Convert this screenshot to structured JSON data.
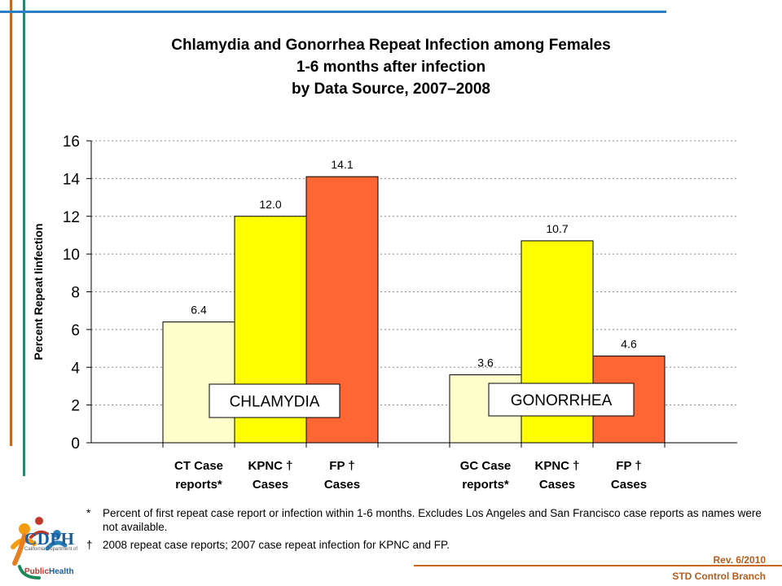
{
  "colors": {
    "accent_blue": "#2a7fc6",
    "accent_orange": "#c8681e",
    "accent_green": "#2a8a6e",
    "bar_case_reports": "#ffffcc",
    "bar_kpnc": "#ffff00",
    "bar_fp": "#ff6633"
  },
  "chart_data": {
    "type": "bar",
    "title_lines": [
      "Chlamydia and Gonorrhea Repeat Infection among Females",
      "1-6 months after infection",
      "by Data Source, 2007–2008"
    ],
    "ylabel": "Percent Repeat Iinfection",
    "xlabel": "",
    "ylim": [
      0,
      16
    ],
    "yticks": [
      0,
      2,
      4,
      6,
      8,
      10,
      12,
      14,
      16
    ],
    "grid": true,
    "groups": [
      {
        "name": "CHLAMYDIA",
        "bars": [
          {
            "label_lines": [
              "CT Case",
              "reports*"
            ],
            "value": 6.4,
            "value_label": "6.4",
            "color_key": "bar_case_reports"
          },
          {
            "label_lines": [
              "KPNC †",
              "Cases"
            ],
            "value": 12.0,
            "value_label": "12.0",
            "color_key": "bar_kpnc"
          },
          {
            "label_lines": [
              "FP †",
              "Cases"
            ],
            "value": 14.1,
            "value_label": "14.1",
            "color_key": "bar_fp"
          }
        ]
      },
      {
        "name": "GONORRHEA",
        "bars": [
          {
            "label_lines": [
              "GC Case",
              "reports*"
            ],
            "value": 3.6,
            "value_label": "3.6",
            "color_key": "bar_case_reports"
          },
          {
            "label_lines": [
              "KPNC †",
              "Cases"
            ],
            "value": 10.7,
            "value_label": "10.7",
            "color_key": "bar_kpnc"
          },
          {
            "label_lines": [
              "FP †",
              "Cases"
            ],
            "value": 4.6,
            "value_label": "4.6",
            "color_key": "bar_fp"
          }
        ]
      }
    ]
  },
  "footnotes": [
    {
      "mark": "*",
      "text": "Percent of first repeat case report or infection within 1-6 months.  Excludes Los Angeles and San Francisco case reports as names were not available."
    },
    {
      "mark": "†",
      "text": "2008 repeat case reports; 2007 case repeat infection for KPNC and FP."
    }
  ],
  "footer": {
    "rev": "Rev.  6/2010",
    "branch": "STD Control Branch"
  },
  "logo": {
    "name": "CDPH",
    "sub": "California Department of",
    "public": "Public",
    "health": "Health"
  }
}
